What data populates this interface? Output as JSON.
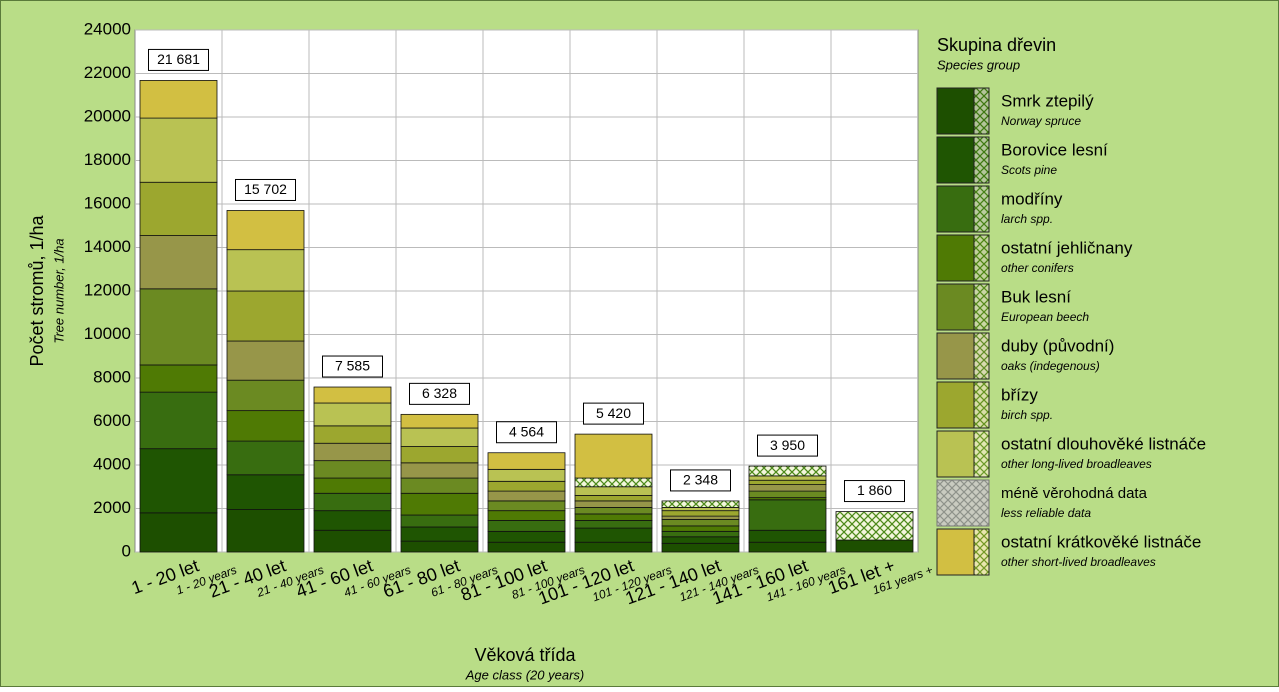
{
  "chart_data": {
    "type": "stacked-bar",
    "y_label": "Počet stromů, 1/ha",
    "y_label_en": "Tree number, 1/ha",
    "x_label": "Věková třída",
    "x_label_en": "Age class (20 years)",
    "legend_title": "Skupina dřevin",
    "legend_subtitle": "Species group",
    "categories": [
      "1 - 20 let",
      "21 - 40 let",
      "41 - 60 let",
      "61 - 80 let",
      "81 - 100 let",
      "101 - 120 let",
      "121 - 140 let",
      "141 - 160 let",
      "161 let +"
    ],
    "categories_en": [
      "1 - 20 years",
      "21 - 40 years",
      "41 - 60 years",
      "61 - 80 years",
      "81 - 100 years",
      "101 - 120 years",
      "121 - 140 years",
      "141 - 160 years",
      "161 years +"
    ],
    "totals": [
      21681,
      15702,
      7585,
      6328,
      4564,
      5420,
      2348,
      3950,
      1860
    ],
    "total_labels": [
      "21 681",
      "15 702",
      "7 585",
      "6 328",
      "4 564",
      "5 420",
      "2 348",
      "3 950",
      "1 860"
    ],
    "ylim": [
      0,
      24000
    ],
    "yticks": [
      0,
      2000,
      4000,
      6000,
      8000,
      10000,
      12000,
      14000,
      16000,
      18000,
      20000,
      22000,
      24000
    ],
    "grid": true,
    "series": [
      {
        "name": "Smrk ztepilý",
        "name_en": "Norway spruce",
        "color": "#1d4f00",
        "values": [
          1800,
          1950,
          1000,
          500,
          450,
          450,
          400,
          450,
          550
        ]
      },
      {
        "name": "Borovice lesní",
        "name_en": "Scots pine",
        "color": "#1f5502",
        "values": [
          2950,
          1600,
          900,
          650,
          500,
          650,
          300,
          550,
          0
        ]
      },
      {
        "name": "modříny",
        "name_en": "larch spp.",
        "color": "#386d10",
        "values": [
          2600,
          1550,
          800,
          550,
          500,
          350,
          250,
          1400,
          0
        ]
      },
      {
        "name": "ostatní jehličnany",
        "name_en": "other conifers",
        "color": "#4f7a04",
        "values": [
          1250,
          1400,
          700,
          1000,
          450,
          300,
          250,
          100,
          0
        ]
      },
      {
        "name": "Buk lesní",
        "name_en": "European beech",
        "color": "#6b8a22",
        "values": [
          3500,
          1400,
          800,
          700,
          450,
          300,
          300,
          300,
          0
        ]
      },
      {
        "name": "duby (původní)",
        "name_en": "oaks (indegenous)",
        "color": "#979649",
        "values": [
          2450,
          1800,
          800,
          700,
          450,
          300,
          150,
          300,
          0
        ]
      },
      {
        "name": "břízy",
        "name_en": "birch spp.",
        "color": "#9ca72f",
        "values": [
          2450,
          2300,
          800,
          750,
          450,
          250,
          250,
          200,
          0
        ]
      },
      {
        "name": "ostatní dlouhověké listnáče",
        "name_en": "other long-lived broadleaves",
        "color": "#b9c253",
        "values": [
          2950,
          1900,
          1050,
          850,
          550,
          400,
          150,
          200,
          0
        ]
      },
      {
        "name": "méně věrohodná data",
        "name_en": "less reliable data",
        "color": "hatch",
        "values": [
          0,
          0,
          0,
          0,
          0,
          400,
          298,
          450,
          1310
        ]
      },
      {
        "name": "ostatní krátkověké listnáče",
        "name_en": "other short-lived broadleaves",
        "color": "#d2bf42",
        "values": [
          1731,
          1802,
          735,
          628,
          764,
          2020,
          0,
          0,
          0
        ]
      }
    ]
  }
}
